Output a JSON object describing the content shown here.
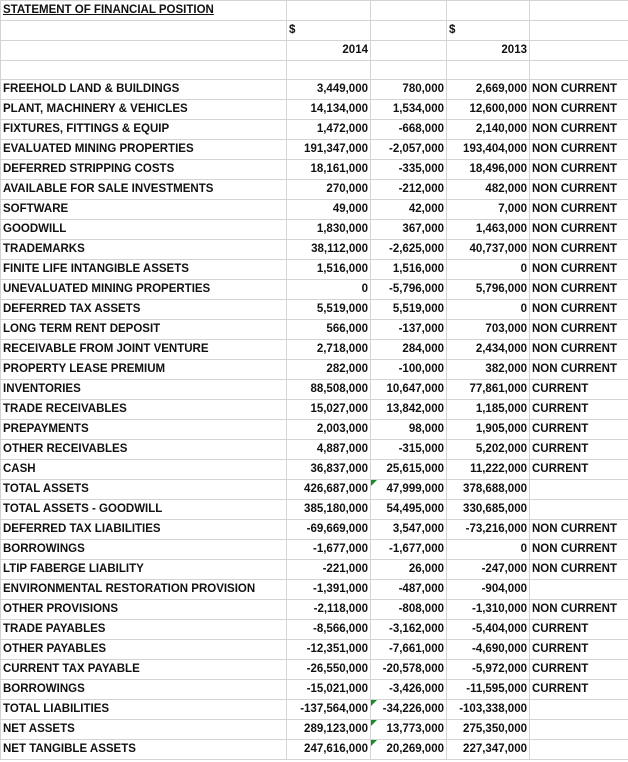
{
  "title": "STATEMENT OF FINANCIAL POSITION",
  "currency_2014": "$",
  "currency_2013": "$",
  "year_2014": "2014",
  "year_2013": "2013",
  "rows": [
    {
      "label": "FREEHOLD LAND & BUILDINGS",
      "v2014": "3,449,000",
      "diff": "780,000",
      "sign": "pos",
      "v2013": "2,669,000",
      "cls": "NON CURRENT"
    },
    {
      "label": "PLANT, MACHINERY & VEHICLES",
      "v2014": "14,134,000",
      "diff": "1,534,000",
      "sign": "pos",
      "v2013": "12,600,000",
      "cls": "NON CURRENT"
    },
    {
      "label": "FIXTURES, FITTINGS & EQUIP",
      "v2014": "1,472,000",
      "diff": "-668,000",
      "sign": "neg",
      "v2013": "2,140,000",
      "cls": "NON CURRENT"
    },
    {
      "label": "EVALUATED MINING PROPERTIES",
      "v2014": "191,347,000",
      "diff": "-2,057,000",
      "sign": "neg",
      "v2013": "193,404,000",
      "cls": "NON CURRENT"
    },
    {
      "label": "DEFERRED STRIPPING COSTS",
      "v2014": "18,161,000",
      "diff": "-335,000",
      "sign": "neg",
      "v2013": "18,496,000",
      "cls": "NON CURRENT"
    },
    {
      "label": "AVAILABLE FOR SALE INVESTMENTS",
      "v2014": "270,000",
      "diff": "-212,000",
      "sign": "neg",
      "v2013": "482,000",
      "cls": "NON CURRENT"
    },
    {
      "label": "SOFTWARE",
      "v2014": "49,000",
      "diff": "42,000",
      "sign": "pos",
      "v2013": "7,000",
      "cls": "NON CURRENT"
    },
    {
      "label": "GOODWILL",
      "v2014": "1,830,000",
      "diff": "367,000",
      "sign": "pos",
      "v2013": "1,463,000",
      "cls": "NON CURRENT"
    },
    {
      "label": "TRADEMARKS",
      "v2014": "38,112,000",
      "diff": "-2,625,000",
      "sign": "neg",
      "v2013": "40,737,000",
      "cls": "NON CURRENT"
    },
    {
      "label": "FINITE LIFE INTANGIBLE ASSETS",
      "v2014": "1,516,000",
      "diff": "1,516,000",
      "sign": "pos",
      "v2013": "0",
      "cls": "NON CURRENT"
    },
    {
      "label": "UNEVALUATED MINING PROPERTIES",
      "v2014": "0",
      "diff": "-5,796,000",
      "sign": "neg",
      "v2013": "5,796,000",
      "cls": "NON CURRENT"
    },
    {
      "label": "DEFERRED TAX ASSETS",
      "v2014": "5,519,000",
      "diff": "5,519,000",
      "sign": "pos",
      "v2013": "0",
      "cls": "NON CURRENT"
    },
    {
      "label": "LONG TERM RENT DEPOSIT",
      "v2014": "566,000",
      "diff": "-137,000",
      "sign": "neg",
      "v2013": "703,000",
      "cls": "NON CURRENT"
    },
    {
      "label": "RECEIVABLE FROM JOINT VENTURE",
      "v2014": "2,718,000",
      "diff": "284,000",
      "sign": "pos",
      "v2013": "2,434,000",
      "cls": "NON CURRENT"
    },
    {
      "label": "PROPERTY LEASE PREMIUM",
      "v2014": "282,000",
      "diff": "-100,000",
      "sign": "neg",
      "v2013": "382,000",
      "cls": "NON CURRENT"
    },
    {
      "label": "INVENTORIES",
      "v2014": "88,508,000",
      "diff": "10,647,000",
      "sign": "pos",
      "v2013": "77,861,000",
      "cls": "CURRENT"
    },
    {
      "label": "TRADE RECEIVABLES",
      "v2014": "15,027,000",
      "diff": "13,842,000",
      "sign": "pos",
      "v2013": "1,185,000",
      "cls": "CURRENT"
    },
    {
      "label": "PREPAYMENTS",
      "v2014": "2,003,000",
      "diff": "98,000",
      "sign": "pos",
      "v2013": "1,905,000",
      "cls": "CURRENT"
    },
    {
      "label": "OTHER RECEIVABLES",
      "v2014": "4,887,000",
      "diff": "-315,000",
      "sign": "neg",
      "v2013": "5,202,000",
      "cls": "CURRENT"
    },
    {
      "label": "CASH",
      "v2014": "36,837,000",
      "diff": "25,615,000",
      "sign": "pos",
      "v2013": "11,222,000",
      "cls": "CURRENT"
    },
    {
      "label": "TOTAL ASSETS",
      "v2014": "426,687,000",
      "diff": "47,999,000",
      "sign": "pos",
      "v2013": "378,688,000",
      "cls": "",
      "flag": true
    },
    {
      "label": "TOTAL ASSETS - GOODWILL",
      "v2014": "385,180,000",
      "diff": "54,495,000",
      "sign": "pos",
      "v2013": "330,685,000",
      "cls": ""
    },
    {
      "label": "DEFERRED TAX LIABILITIES",
      "v2014": "-69,669,000",
      "diff": "3,547,000",
      "sign": "pos",
      "v2013": "-73,216,000",
      "cls": "NON CURRENT"
    },
    {
      "label": "BORROWINGS",
      "v2014": "-1,677,000",
      "diff": "-1,677,000",
      "sign": "neg",
      "v2013": "0",
      "cls": "NON CURRENT"
    },
    {
      "label": "LTIP FABERGE LIABILITY",
      "v2014": "-221,000",
      "diff": "26,000",
      "sign": "pos",
      "v2013": "-247,000",
      "cls": "NON CURRENT"
    },
    {
      "label": "ENVIRONMENTAL RESTORATION PROVISION",
      "v2014": "-1,391,000",
      "diff": "-487,000",
      "sign": "neg",
      "v2013": "-904,000",
      "cls": ""
    },
    {
      "label": "OTHER PROVISIONS",
      "v2014": "-2,118,000",
      "diff": "-808,000",
      "sign": "neg",
      "v2013": "-1,310,000",
      "cls": "NON CURRENT"
    },
    {
      "label": "TRADE PAYABLES",
      "v2014": "-8,566,000",
      "diff": "-3,162,000",
      "sign": "neg",
      "v2013": "-5,404,000",
      "cls": "CURRENT"
    },
    {
      "label": "OTHER PAYABLES",
      "v2014": "-12,351,000",
      "diff": "-7,661,000",
      "sign": "neg",
      "v2013": "-4,690,000",
      "cls": "CURRENT"
    },
    {
      "label": "CURRENT TAX PAYABLE",
      "v2014": "-26,550,000",
      "diff": "-20,578,000",
      "sign": "neg",
      "v2013": "-5,972,000",
      "cls": "CURRENT"
    },
    {
      "label": "BORROWINGS",
      "v2014": "-15,021,000",
      "diff": "-3,426,000",
      "sign": "neg",
      "v2013": "-11,595,000",
      "cls": "CURRENT"
    },
    {
      "label": "TOTAL LIABILITIES",
      "v2014": "-137,564,000",
      "diff": "-34,226,000",
      "sign": "neg",
      "v2013": "-103,338,000",
      "cls": "",
      "flag": true
    },
    {
      "label": "NET ASSETS",
      "v2014": "289,123,000",
      "diff": "13,773,000",
      "sign": "pos",
      "v2013": "275,350,000",
      "cls": "",
      "flag": true
    },
    {
      "label": "NET TANGIBLE ASSETS",
      "v2014": "247,616,000",
      "diff": "20,269,000",
      "sign": "pos",
      "v2013": "227,347,000",
      "cls": "",
      "flag": true
    }
  ]
}
